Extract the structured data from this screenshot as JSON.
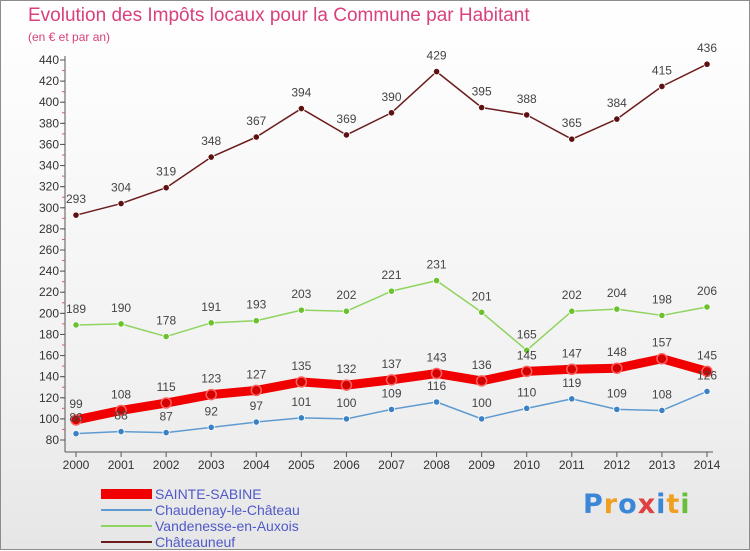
{
  "title": "Evolution des Impôts locaux pour la Commune par Habitant",
  "subtitle": "(en € et par an)",
  "logo": {
    "text": "Proxiti",
    "letter_colors": [
      "#3a86d8",
      "#f0a020",
      "#3a86d8",
      "#e04040",
      "#3a86d8",
      "#f0a020",
      "#6abf3a"
    ]
  },
  "chart_data": {
    "type": "line",
    "x": [
      "2000",
      "2001",
      "2002",
      "2003",
      "2004",
      "2005",
      "2006",
      "2007",
      "2008",
      "2009",
      "2010",
      "2011",
      "2012",
      "2013",
      "2014"
    ],
    "ylim": [
      80,
      440
    ],
    "yticks": [
      80,
      100,
      120,
      140,
      160,
      180,
      200,
      220,
      240,
      260,
      280,
      300,
      320,
      340,
      360,
      380,
      400,
      420,
      440
    ],
    "grid": false,
    "legend_position": "bottom-left",
    "series": [
      {
        "name": "Châteauneuf",
        "color": "#6b1d1d",
        "marker": "#5e1111",
        "values": [
          293,
          304,
          319,
          348,
          367,
          394,
          369,
          390,
          429,
          395,
          388,
          365,
          384,
          415,
          436
        ]
      },
      {
        "name": "Vandenesse-en-Auxois",
        "color": "#8fd45e",
        "marker": "#6cc12f",
        "values": [
          189,
          190,
          178,
          191,
          193,
          203,
          202,
          221,
          231,
          201,
          165,
          202,
          204,
          198,
          206
        ]
      },
      {
        "name": "SAINTE-SABINE",
        "color": "#f00000",
        "marker": "#d40000",
        "values": [
          99,
          108,
          115,
          123,
          127,
          135,
          132,
          137,
          143,
          136,
          145,
          147,
          148,
          157,
          145
        ]
      },
      {
        "name": "Chaudenay-le-Château",
        "color": "#5f9bd1",
        "marker": "#3b82c4",
        "values": [
          86,
          88,
          87,
          92,
          97,
          101,
          100,
          109,
          116,
          100,
          110,
          119,
          109,
          108,
          126
        ]
      }
    ]
  },
  "legend": [
    {
      "label": "SAINTE-SABINE",
      "color": "#f00000",
      "thickness": 10
    },
    {
      "label": "Chaudenay-le-Château",
      "color": "#5f9bd1",
      "thickness": 2
    },
    {
      "label": "Vandenesse-en-Auxois",
      "color": "#8fd45e",
      "thickness": 2
    },
    {
      "label": "Châteauneuf",
      "color": "#6b1d1d",
      "thickness": 2
    }
  ]
}
